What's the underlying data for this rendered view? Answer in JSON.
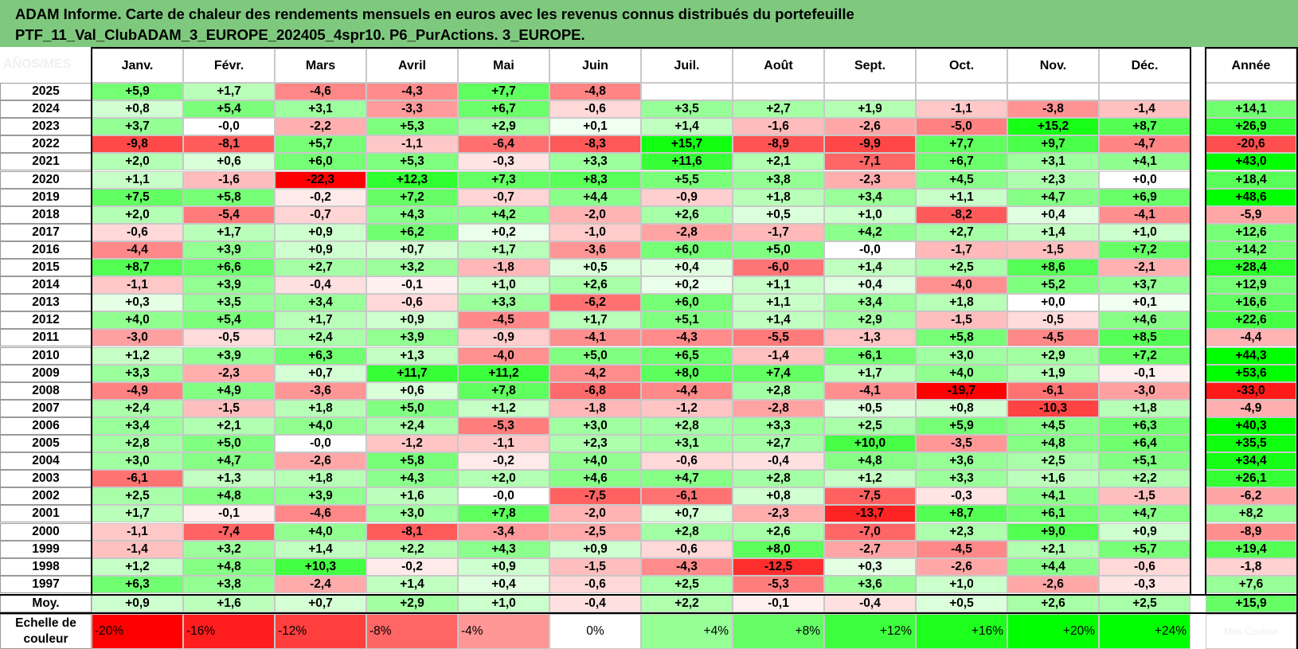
{
  "title": {
    "line1": "ADAM Informe. Carte de chaleur des rendements mensuels en euros avec les revenus connus distribués du portefeuille",
    "line2": "PTF_11_Val_ClubADAM_3_EUROPE_202405_4spr10. P6_PurActions. 3_EUROPE."
  },
  "stub_label": "AÑOS/MES",
  "chart_data": {
    "type": "heatmap",
    "title": "ADAM Informe. Carte de chaleur des rendements mensuels en euros avec les revenus connus distribués du portefeuille PTF_11_Val_ClubADAM_3_EUROPE_202405_4spr10. P6_PurActions. 3_EUROPE.",
    "columns": [
      "Janv.",
      "Févr.",
      "Mars",
      "Avril",
      "Mai",
      "Juin",
      "Juil.",
      "Août",
      "Sept.",
      "Oct.",
      "Nov.",
      "Déc."
    ],
    "year_column": "Année",
    "rows": [
      {
        "year": "2025",
        "months": [
          "+5,9",
          "+1,7",
          "-4,6",
          "-4,3",
          "+7,7",
          "-4,8",
          "",
          "",
          "",
          "",
          "",
          ""
        ],
        "annual": ""
      },
      {
        "year": "2024",
        "months": [
          "+0,8",
          "+5,4",
          "+3,1",
          "-3,3",
          "+6,7",
          "-0,6",
          "+3,5",
          "+2,7",
          "+1,9",
          "-1,1",
          "-3,8",
          "-1,4"
        ],
        "annual": "+14,1"
      },
      {
        "year": "2023",
        "months": [
          "+3,7",
          "-0,0",
          "-2,2",
          "+5,3",
          "+2,9",
          "+0,1",
          "+1,4",
          "-1,6",
          "-2,6",
          "-5,0",
          "+15,2",
          "+8,7"
        ],
        "annual": "+26,9"
      },
      {
        "year": "2022",
        "months": [
          "-9,8",
          "-8,1",
          "+5,7",
          "-1,1",
          "-6,4",
          "-8,3",
          "+15,7",
          "-8,9",
          "-9,9",
          "+7,7",
          "+9,7",
          "-4,7"
        ],
        "annual": "-20,6"
      },
      {
        "year": "2021",
        "months": [
          "+2,0",
          "+0,6",
          "+6,0",
          "+5,3",
          "-0,3",
          "+3,3",
          "+11,6",
          "+2,1",
          "-7,1",
          "+6,7",
          "+3,1",
          "+4,1"
        ],
        "annual": "+43,0"
      },
      {
        "year": "2020",
        "months": [
          "+1,1",
          "-1,6",
          "-22,3",
          "+12,3",
          "+7,3",
          "+8,3",
          "+5,5",
          "+3,8",
          "-2,3",
          "+4,5",
          "+2,3",
          "+0,0"
        ],
        "annual": "+18,4"
      },
      {
        "year": "2019",
        "months": [
          "+7,5",
          "+5,8",
          "-0,2",
          "+7,2",
          "-0,7",
          "+4,4",
          "-0,9",
          "+1,8",
          "+3,4",
          "+1,1",
          "+4,7",
          "+6,9"
        ],
        "annual": "+48,6"
      },
      {
        "year": "2018",
        "months": [
          "+2,0",
          "-5,4",
          "-0,7",
          "+4,3",
          "+4,2",
          "-2,0",
          "+2,6",
          "+0,5",
          "+1,0",
          "-8,2",
          "+0,4",
          "-4,1"
        ],
        "annual": "-5,9"
      },
      {
        "year": "2017",
        "months": [
          "-0,6",
          "+1,7",
          "+0,9",
          "+6,2",
          "+0,2",
          "-1,0",
          "-2,8",
          "-1,7",
          "+4,2",
          "+2,7",
          "+1,4",
          "+1,0"
        ],
        "annual": "+12,6"
      },
      {
        "year": "2016",
        "months": [
          "-4,4",
          "+3,9",
          "+0,9",
          "+0,7",
          "+1,7",
          "-3,6",
          "+6,0",
          "+5,0",
          "-0,0",
          "-1,7",
          "-1,5",
          "+7,2"
        ],
        "annual": "+14,2"
      },
      {
        "year": "2015",
        "months": [
          "+8,7",
          "+6,6",
          "+2,7",
          "+3,2",
          "-1,8",
          "+0,5",
          "+0,4",
          "-6,0",
          "+1,4",
          "+2,5",
          "+8,6",
          "-2,1"
        ],
        "annual": "+28,4"
      },
      {
        "year": "2014",
        "months": [
          "-1,1",
          "+3,9",
          "-0,4",
          "-0,1",
          "+1,0",
          "+2,6",
          "+0,2",
          "+1,1",
          "+0,4",
          "-4,0",
          "+5,2",
          "+3,7"
        ],
        "annual": "+12,9"
      },
      {
        "year": "2013",
        "months": [
          "+0,3",
          "+3,5",
          "+3,4",
          "-0,6",
          "+3,3",
          "-6,2",
          "+6,0",
          "+1,1",
          "+3,4",
          "+1,8",
          "+0,0",
          "+0,1"
        ],
        "annual": "+16,6"
      },
      {
        "year": "2012",
        "months": [
          "+4,0",
          "+5,4",
          "+1,7",
          "+0,9",
          "-4,5",
          "+1,7",
          "+5,1",
          "+1,4",
          "+2,9",
          "-1,5",
          "-0,5",
          "+4,6"
        ],
        "annual": "+22,6"
      },
      {
        "year": "2011",
        "months": [
          "-3,0",
          "-0,5",
          "+2,4",
          "+3,9",
          "-0,9",
          "-4,1",
          "-4,3",
          "-5,5",
          "-1,3",
          "+5,8",
          "-4,5",
          "+8,5"
        ],
        "annual": "-4,4"
      },
      {
        "year": "2010",
        "months": [
          "+1,2",
          "+3,9",
          "+6,3",
          "+1,3",
          "-4,0",
          "+5,0",
          "+6,5",
          "-1,4",
          "+6,1",
          "+3,0",
          "+2,9",
          "+7,2"
        ],
        "annual": "+44,3"
      },
      {
        "year": "2009",
        "months": [
          "+3,3",
          "-2,3",
          "+0,7",
          "+11,7",
          "+11,2",
          "-4,2",
          "+8,0",
          "+7,4",
          "+1,7",
          "+4,0",
          "+1,9",
          "-0,1"
        ],
        "annual": "+53,6"
      },
      {
        "year": "2008",
        "months": [
          "-4,9",
          "+4,9",
          "-3,6",
          "+0,6",
          "+7,8",
          "-6,8",
          "-4,4",
          "+2,8",
          "-4,1",
          "-19,7",
          "-6,1",
          "-3,0"
        ],
        "annual": "-33,0"
      },
      {
        "year": "2007",
        "months": [
          "+2,4",
          "-1,5",
          "+1,8",
          "+5,0",
          "+1,2",
          "-1,8",
          "-1,2",
          "-2,8",
          "+0,5",
          "+0,8",
          "-10,3",
          "+1,8"
        ],
        "annual": "-4,9"
      },
      {
        "year": "2006",
        "months": [
          "+3,4",
          "+2,1",
          "+4,0",
          "+2,4",
          "-5,3",
          "+3,0",
          "+2,8",
          "+3,3",
          "+2,5",
          "+5,9",
          "+4,5",
          "+6,3"
        ],
        "annual": "+40,3"
      },
      {
        "year": "2005",
        "months": [
          "+2,8",
          "+5,0",
          "-0,0",
          "-1,2",
          "-1,1",
          "+2,3",
          "+3,1",
          "+2,7",
          "+10,0",
          "-3,5",
          "+4,8",
          "+6,4"
        ],
        "annual": "+35,5"
      },
      {
        "year": "2004",
        "months": [
          "+3,0",
          "+4,7",
          "-2,6",
          "+5,8",
          "-0,2",
          "+4,0",
          "-0,6",
          "-0,4",
          "+4,8",
          "+3,6",
          "+2,5",
          "+5,1"
        ],
        "annual": "+34,4"
      },
      {
        "year": "2003",
        "months": [
          "-6,1",
          "+1,3",
          "+1,8",
          "+4,3",
          "+2,0",
          "+4,6",
          "+4,7",
          "+2,8",
          "+1,2",
          "+3,3",
          "+1,6",
          "+2,2"
        ],
        "annual": "+26,1"
      },
      {
        "year": "2002",
        "months": [
          "+2,5",
          "+4,8",
          "+3,9",
          "+1,6",
          "-0,0",
          "-7,5",
          "-6,1",
          "+0,8",
          "-7,5",
          "-0,3",
          "+4,1",
          "-1,5"
        ],
        "annual": "-6,2"
      },
      {
        "year": "2001",
        "months": [
          "+1,7",
          "-0,1",
          "-4,6",
          "+3,0",
          "+7,8",
          "-2,0",
          "+0,7",
          "-2,3",
          "-13,7",
          "+8,7",
          "+6,1",
          "+4,7"
        ],
        "annual": "+8,2"
      },
      {
        "year": "2000",
        "months": [
          "-1,1",
          "-7,4",
          "+4,0",
          "-8,1",
          "-3,4",
          "-2,5",
          "+2,8",
          "+2,6",
          "-7,0",
          "+2,3",
          "+9,0",
          "+0,9"
        ],
        "annual": "-8,9"
      },
      {
        "year": "1999",
        "months": [
          "-1,4",
          "+3,2",
          "+1,4",
          "+2,2",
          "+4,3",
          "+0,9",
          "-0,6",
          "+8,0",
          "-2,7",
          "-4,5",
          "+2,1",
          "+5,7"
        ],
        "annual": "+19,4"
      },
      {
        "year": "1998",
        "months": [
          "+1,2",
          "+4,8",
          "+10,3",
          "-0,2",
          "+0,9",
          "-1,5",
          "-4,3",
          "-12,5",
          "+0,3",
          "-2,6",
          "+4,4",
          "-0,6"
        ],
        "annual": "-1,8"
      },
      {
        "year": "1997",
        "months": [
          "+6,3",
          "+3,8",
          "-2,4",
          "+1,4",
          "+0,4",
          "-0,6",
          "+2,5",
          "-5,3",
          "+3,6",
          "+1,0",
          "-2,6",
          "-0,3"
        ],
        "annual": "+7,6"
      }
    ],
    "average": {
      "label": "Moy.",
      "months": [
        "+0,9",
        "+1,6",
        "+0,7",
        "+2,9",
        "+1,0",
        "-0,4",
        "+2,2",
        "-0,1",
        "-0,4",
        "+0,5",
        "+2,6",
        "+2,5"
      ],
      "annual": "+15,9"
    },
    "scale": {
      "label": "Echelle de couleur",
      "steps": [
        "-20%",
        "-16%",
        "-12%",
        "-8%",
        "-4%",
        "0%",
        "+4%",
        "+8%",
        "+12%",
        "+16%",
        "+20%",
        "+24%"
      ],
      "trailing_label": "Mes Couleur"
    },
    "colors": {
      "negative": "#ff0000",
      "neutral": "#ffffff",
      "positive": "#00ff00",
      "title_bg": "#7fc97f"
    }
  }
}
